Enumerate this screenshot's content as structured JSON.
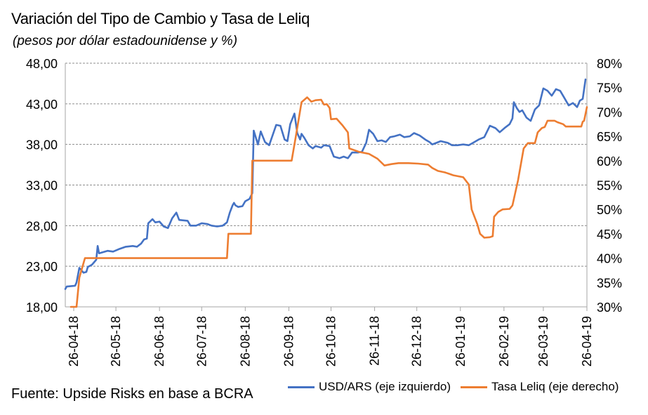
{
  "chart_data": {
    "type": "line",
    "title": "Variación del Tipo de  Cambio y Tasa de Leliq",
    "subtitle": "(pesos por dólar estadounidense y %)",
    "source": "Fuente: Upside Risks en base a BCRA",
    "y_left": {
      "ylim": [
        18,
        48
      ],
      "ticks": [
        18,
        23,
        28,
        33,
        38,
        43,
        48
      ],
      "tick_labels": [
        "18,00",
        "23,00",
        "28,00",
        "33,00",
        "38,00",
        "43,00",
        "48,00"
      ]
    },
    "y_right": {
      "ylim": [
        30,
        80
      ],
      "ticks": [
        30,
        35,
        40,
        45,
        50,
        55,
        60,
        65,
        70,
        75,
        80
      ],
      "tick_labels": [
        "30%",
        "35%",
        "40%",
        "45%",
        "50%",
        "55%",
        "60%",
        "65%",
        "70%",
        "75%",
        "80%"
      ]
    },
    "x_axis": {
      "start": "2018-04-20",
      "end": "2019-04-26",
      "ticks": [
        "2018-04-26",
        "2018-05-26",
        "2018-06-26",
        "2018-07-26",
        "2018-08-26",
        "2018-09-26",
        "2018-10-26",
        "2018-11-26",
        "2018-12-26",
        "2019-01-26",
        "2019-02-26",
        "2019-03-26",
        "2019-04-26"
      ],
      "tick_labels": [
        "26-04-18",
        "26-05-18",
        "26-06-18",
        "26-07-18",
        "26-08-18",
        "26-09-18",
        "26-10-18",
        "26-11-18",
        "26-12-18",
        "26-01-19",
        "26-02-19",
        "26-03-19",
        "26-04-19"
      ]
    },
    "grid": true,
    "legend_position": "bottom-right",
    "series": [
      {
        "name": "USD/ARS (eje izquierdo)",
        "axis": "left",
        "color": "#4472C4",
        "points": [
          [
            "2018-04-20",
            20.2
          ],
          [
            "2018-04-21",
            20.5
          ],
          [
            "2018-04-27",
            20.6
          ],
          [
            "2018-04-28",
            21.0
          ],
          [
            "2018-04-30",
            22.8
          ],
          [
            "2018-05-03",
            22.2
          ],
          [
            "2018-05-05",
            22.3
          ],
          [
            "2018-05-06",
            22.9
          ],
          [
            "2018-05-09",
            23.2
          ],
          [
            "2018-05-12",
            23.8
          ],
          [
            "2018-05-13",
            25.5
          ],
          [
            "2018-05-14",
            24.6
          ],
          [
            "2018-05-20",
            24.9
          ],
          [
            "2018-05-24",
            24.8
          ],
          [
            "2018-05-28",
            25.1
          ],
          [
            "2018-06-02",
            25.4
          ],
          [
            "2018-06-07",
            25.5
          ],
          [
            "2018-06-10",
            25.4
          ],
          [
            "2018-06-13",
            25.8
          ],
          [
            "2018-06-15",
            26.3
          ],
          [
            "2018-06-17",
            26.4
          ],
          [
            "2018-06-18",
            28.3
          ],
          [
            "2018-06-21",
            28.8
          ],
          [
            "2018-06-23",
            28.4
          ],
          [
            "2018-06-26",
            28.5
          ],
          [
            "2018-06-29",
            27.9
          ],
          [
            "2018-07-02",
            27.7
          ],
          [
            "2018-07-05",
            28.9
          ],
          [
            "2018-07-08",
            29.6
          ],
          [
            "2018-07-10",
            28.7
          ],
          [
            "2018-07-16",
            28.6
          ],
          [
            "2018-07-18",
            28.0
          ],
          [
            "2018-07-22",
            28.0
          ],
          [
            "2018-07-26",
            28.3
          ],
          [
            "2018-07-30",
            28.2
          ],
          [
            "2018-08-02",
            28.0
          ],
          [
            "2018-08-06",
            27.9
          ],
          [
            "2018-08-10",
            28.0
          ],
          [
            "2018-08-13",
            28.4
          ],
          [
            "2018-08-15",
            29.6
          ],
          [
            "2018-08-17",
            30.5
          ],
          [
            "2018-08-18",
            30.8
          ],
          [
            "2018-08-19",
            30.5
          ],
          [
            "2018-08-21",
            30.3
          ],
          [
            "2018-08-24",
            30.4
          ],
          [
            "2018-08-26",
            31.0
          ],
          [
            "2018-08-29",
            31.3
          ],
          [
            "2018-08-31",
            32.0
          ],
          [
            "2018-09-01",
            39.7
          ],
          [
            "2018-09-04",
            38.0
          ],
          [
            "2018-09-06",
            39.6
          ],
          [
            "2018-09-09",
            38.3
          ],
          [
            "2018-09-12",
            37.9
          ],
          [
            "2018-09-15",
            39.4
          ],
          [
            "2018-09-17",
            40.4
          ],
          [
            "2018-09-20",
            40.3
          ],
          [
            "2018-09-23",
            38.6
          ],
          [
            "2018-09-25",
            38.4
          ],
          [
            "2018-09-27",
            40.5
          ],
          [
            "2018-09-30",
            41.8
          ],
          [
            "2018-10-02",
            39.4
          ],
          [
            "2018-10-04",
            38.6
          ],
          [
            "2018-10-05",
            39.3
          ],
          [
            "2018-10-07",
            38.8
          ],
          [
            "2018-10-10",
            37.9
          ],
          [
            "2018-10-13",
            37.5
          ],
          [
            "2018-10-15",
            37.8
          ],
          [
            "2018-10-19",
            37.6
          ],
          [
            "2018-10-21",
            37.9
          ],
          [
            "2018-10-25",
            37.8
          ],
          [
            "2018-10-28",
            36.5
          ],
          [
            "2018-11-01",
            36.3
          ],
          [
            "2018-11-04",
            36.5
          ],
          [
            "2018-11-07",
            36.3
          ],
          [
            "2018-11-10",
            37.0
          ],
          [
            "2018-11-14",
            37.0
          ],
          [
            "2018-11-17",
            37.1
          ],
          [
            "2018-11-20",
            38.2
          ],
          [
            "2018-11-22",
            39.8
          ],
          [
            "2018-11-25",
            39.3
          ],
          [
            "2018-11-28",
            38.4
          ],
          [
            "2018-12-01",
            38.5
          ],
          [
            "2018-12-04",
            38.3
          ],
          [
            "2018-12-07",
            38.9
          ],
          [
            "2018-12-10",
            39.0
          ],
          [
            "2018-12-14",
            39.2
          ],
          [
            "2018-12-17",
            38.9
          ],
          [
            "2018-12-21",
            39.0
          ],
          [
            "2018-12-24",
            39.4
          ],
          [
            "2018-12-28",
            39.1
          ],
          [
            "2019-01-01",
            38.6
          ],
          [
            "2019-01-04",
            38.3
          ],
          [
            "2019-01-06",
            38.0
          ],
          [
            "2019-01-09",
            38.2
          ],
          [
            "2019-01-12",
            38.4
          ],
          [
            "2019-01-17",
            38.2
          ],
          [
            "2019-01-20",
            37.9
          ],
          [
            "2019-01-24",
            37.9
          ],
          [
            "2019-01-28",
            38.0
          ],
          [
            "2019-02-01",
            37.9
          ],
          [
            "2019-02-04",
            38.2
          ],
          [
            "2019-02-08",
            38.6
          ],
          [
            "2019-02-12",
            38.9
          ],
          [
            "2019-02-16",
            40.3
          ],
          [
            "2019-02-20",
            40.0
          ],
          [
            "2019-02-23",
            39.5
          ],
          [
            "2019-02-27",
            40.1
          ],
          [
            "2019-03-02",
            40.5
          ],
          [
            "2019-03-04",
            41.2
          ],
          [
            "2019-03-05",
            43.2
          ],
          [
            "2019-03-07",
            42.5
          ],
          [
            "2019-03-09",
            42.0
          ],
          [
            "2019-03-11",
            42.2
          ],
          [
            "2019-03-14",
            41.3
          ],
          [
            "2019-03-17",
            40.9
          ],
          [
            "2019-03-20",
            42.3
          ],
          [
            "2019-03-23",
            42.8
          ],
          [
            "2019-03-26",
            44.9
          ],
          [
            "2019-03-29",
            44.6
          ],
          [
            "2019-04-01",
            44.0
          ],
          [
            "2019-04-04",
            44.8
          ],
          [
            "2019-04-07",
            44.6
          ],
          [
            "2019-04-10",
            43.7
          ],
          [
            "2019-04-13",
            42.8
          ],
          [
            "2019-04-16",
            43.1
          ],
          [
            "2019-04-19",
            42.6
          ],
          [
            "2019-04-21",
            43.4
          ],
          [
            "2019-04-23",
            43.6
          ],
          [
            "2019-04-25",
            46.0
          ]
        ]
      },
      {
        "name": "Tasa Leliq (eje derecho)",
        "axis": "right",
        "color": "#ED7D31",
        "points": [
          [
            "2018-04-24",
            30.0
          ],
          [
            "2018-04-25",
            30.0
          ],
          [
            "2018-04-28",
            30.0
          ],
          [
            "2018-04-30",
            36.0
          ],
          [
            "2018-05-02",
            38.0
          ],
          [
            "2018-05-04",
            40.0
          ],
          [
            "2018-08-13",
            40.0
          ],
          [
            "2018-08-14",
            45.0
          ],
          [
            "2018-08-30",
            45.0
          ],
          [
            "2018-08-31",
            60.0
          ],
          [
            "2018-09-28",
            60.0
          ],
          [
            "2018-10-01",
            65.0
          ],
          [
            "2018-10-05",
            72.0
          ],
          [
            "2018-10-09",
            73.0
          ],
          [
            "2018-10-12",
            72.1
          ],
          [
            "2018-10-15",
            72.4
          ],
          [
            "2018-10-19",
            72.5
          ],
          [
            "2018-10-21",
            71.5
          ],
          [
            "2018-10-23",
            71.6
          ],
          [
            "2018-10-25",
            70.8
          ],
          [
            "2018-10-26",
            68.5
          ],
          [
            "2018-10-30",
            68.6
          ],
          [
            "2018-11-03",
            67.3
          ],
          [
            "2018-11-07",
            65.8
          ],
          [
            "2018-11-08",
            62.5
          ],
          [
            "2018-11-15",
            61.8
          ],
          [
            "2018-11-22",
            61.4
          ],
          [
            "2018-11-28",
            60.4
          ],
          [
            "2018-12-03",
            59.0
          ],
          [
            "2018-12-08",
            59.3
          ],
          [
            "2018-12-13",
            59.5
          ],
          [
            "2018-12-20",
            59.5
          ],
          [
            "2018-12-27",
            59.4
          ],
          [
            "2019-01-03",
            59.2
          ],
          [
            "2019-01-06",
            58.5
          ],
          [
            "2019-01-10",
            57.9
          ],
          [
            "2019-01-15",
            57.6
          ],
          [
            "2019-01-18",
            57.3
          ],
          [
            "2019-01-21",
            57.0
          ],
          [
            "2019-01-28",
            56.6
          ],
          [
            "2019-02-01",
            55.1
          ],
          [
            "2019-02-03",
            50.0
          ],
          [
            "2019-02-07",
            47.0
          ],
          [
            "2019-02-09",
            45.0
          ],
          [
            "2019-02-12",
            44.2
          ],
          [
            "2019-02-16",
            44.3
          ],
          [
            "2019-02-18",
            44.5
          ],
          [
            "2019-02-19",
            48.5
          ],
          [
            "2019-02-22",
            49.5
          ],
          [
            "2019-02-25",
            50.0
          ],
          [
            "2019-03-02",
            50.1
          ],
          [
            "2019-03-04",
            50.8
          ],
          [
            "2019-03-08",
            56.0
          ],
          [
            "2019-03-12",
            62.5
          ],
          [
            "2019-03-15",
            63.6
          ],
          [
            "2019-03-20",
            63.6
          ],
          [
            "2019-03-22",
            65.8
          ],
          [
            "2019-03-25",
            66.7
          ],
          [
            "2019-03-27",
            66.9
          ],
          [
            "2019-03-29",
            68.2
          ],
          [
            "2019-04-03",
            68.2
          ],
          [
            "2019-04-05",
            67.9
          ],
          [
            "2019-04-09",
            67.5
          ],
          [
            "2019-04-11",
            67.0
          ],
          [
            "2019-04-15",
            67.0
          ],
          [
            "2019-04-20",
            67.0
          ],
          [
            "2019-04-22",
            67.0
          ],
          [
            "2019-04-23",
            68.0
          ],
          [
            "2019-04-24",
            68.2
          ],
          [
            "2019-04-26",
            71.0
          ]
        ]
      }
    ]
  }
}
